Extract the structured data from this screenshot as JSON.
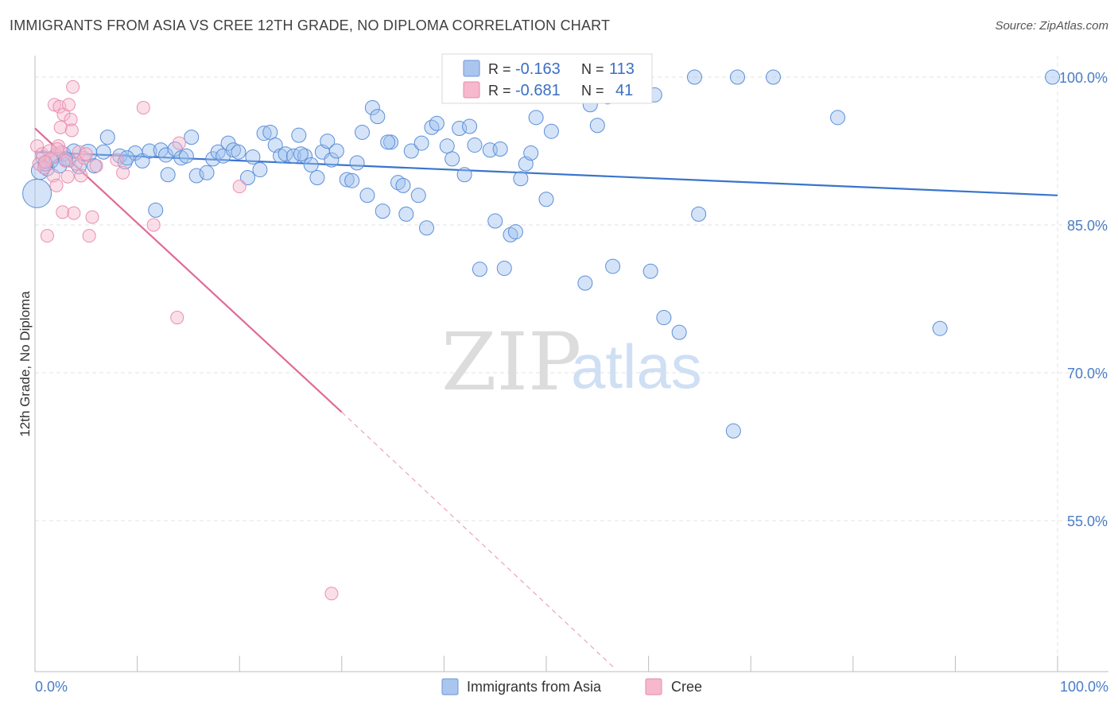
{
  "title": "IMMIGRANTS FROM ASIA VS CREE 12TH GRADE, NO DIPLOMA CORRELATION CHART",
  "source": "Source: ZipAtlas.com",
  "watermark": {
    "zip": "ZIP",
    "atlas": "atlas"
  },
  "colors": {
    "blue": "#3a74cc",
    "blue_fill": "#aac6ee",
    "pink": "#e06a98",
    "pink_fill": "#f6b8cc",
    "grid": "#e3e3e3",
    "tick_text": "#4a7cc7"
  },
  "legend": {
    "r_label": "R = ",
    "n_label": "N = ",
    "blue": {
      "r": "-0.163",
      "n": "113"
    },
    "pink": {
      "r": "-0.681",
      "n": "41"
    }
  },
  "chart_data": {
    "type": "scatter",
    "title": "IMMIGRANTS FROM ASIA VS CREE 12TH GRADE, NO DIPLOMA CORRELATION CHART",
    "xlabel": "",
    "ylabel": "12th Grade, No Diploma",
    "xlim": [
      0,
      100
    ],
    "ylim": [
      40,
      101.5
    ],
    "x_tick_labels": [
      "0.0%",
      "100.0%"
    ],
    "y_ticks": [
      {
        "value": 100,
        "label": "100.0%"
      },
      {
        "value": 85,
        "label": "85.0%"
      },
      {
        "value": 70,
        "label": "70.0%"
      },
      {
        "value": 55,
        "label": "55.0%"
      }
    ],
    "grid": true,
    "legend_position": "top-center",
    "series": [
      {
        "name": "Immigrants from Asia",
        "color": "#3a74cc",
        "r": -0.163,
        "n": 113,
        "trend": {
          "x": [
            0,
            100
          ],
          "y": [
            92.4,
            88.0
          ]
        },
        "points": [
          [
            0.2,
            88.2
          ],
          [
            0.5,
            90.5
          ],
          [
            0.8,
            91.8
          ],
          [
            1.2,
            90.7
          ],
          [
            1.6,
            91.5
          ],
          [
            2.0,
            92.0
          ],
          [
            2.4,
            91.0
          ],
          [
            2.8,
            92.2
          ],
          [
            3.3,
            91.6
          ],
          [
            3.8,
            92.5
          ],
          [
            4.3,
            90.9
          ],
          [
            5.2,
            92.3
          ],
          [
            6.7,
            92.4
          ],
          [
            7.1,
            93.9
          ],
          [
            8.3,
            92.0
          ],
          [
            8.8,
            91.4
          ],
          [
            9.8,
            92.3
          ],
          [
            10.5,
            91.5
          ],
          [
            11.2,
            92.5
          ],
          [
            11.8,
            86.5
          ],
          [
            12.3,
            92.6
          ],
          [
            12.8,
            92.1
          ],
          [
            13.0,
            90.1
          ],
          [
            13.7,
            92.7
          ],
          [
            14.3,
            91.8
          ],
          [
            14.8,
            92.0
          ],
          [
            15.3,
            93.9
          ],
          [
            15.8,
            90.0
          ],
          [
            16.8,
            90.3
          ],
          [
            17.4,
            91.7
          ],
          [
            17.9,
            92.4
          ],
          [
            18.4,
            92.0
          ],
          [
            18.9,
            93.3
          ],
          [
            19.4,
            92.6
          ],
          [
            19.9,
            92.4
          ],
          [
            20.8,
            89.8
          ],
          [
            21.3,
            91.9
          ],
          [
            22.0,
            90.6
          ],
          [
            22.4,
            94.3
          ],
          [
            23.0,
            94.4
          ],
          [
            23.5,
            93.1
          ],
          [
            24.0,
            92.0
          ],
          [
            24.5,
            92.2
          ],
          [
            25.3,
            92.0
          ],
          [
            25.8,
            94.1
          ],
          [
            26.4,
            92.0
          ],
          [
            27.0,
            91.1
          ],
          [
            27.6,
            89.8
          ],
          [
            28.1,
            92.4
          ],
          [
            28.6,
            93.5
          ],
          [
            29.0,
            91.6
          ],
          [
            29.5,
            92.5
          ],
          [
            30.5,
            89.6
          ],
          [
            31.0,
            89.5
          ],
          [
            31.5,
            91.3
          ],
          [
            32.0,
            94.4
          ],
          [
            32.5,
            88.0
          ],
          [
            33.0,
            96.9
          ],
          [
            33.5,
            96.0
          ],
          [
            34.0,
            86.4
          ],
          [
            34.8,
            93.4
          ],
          [
            35.5,
            89.3
          ],
          [
            36.0,
            89.0
          ],
          [
            36.3,
            86.1
          ],
          [
            36.8,
            92.5
          ],
          [
            37.5,
            88.0
          ],
          [
            37.8,
            93.3
          ],
          [
            38.3,
            84.7
          ],
          [
            38.8,
            94.9
          ],
          [
            39.3,
            95.3
          ],
          [
            40.3,
            93.0
          ],
          [
            40.8,
            91.7
          ],
          [
            41.5,
            94.8
          ],
          [
            42.0,
            90.1
          ],
          [
            42.5,
            95.0
          ],
          [
            43.0,
            93.1
          ],
          [
            43.5,
            80.5
          ],
          [
            44.5,
            92.6
          ],
          [
            45.0,
            85.4
          ],
          [
            45.5,
            92.7
          ],
          [
            45.9,
            80.6
          ],
          [
            46.5,
            84.0
          ],
          [
            47.0,
            84.3
          ],
          [
            47.5,
            89.7
          ],
          [
            48.0,
            91.2
          ],
          [
            48.5,
            92.3
          ],
          [
            49.0,
            95.9
          ],
          [
            50.0,
            87.6
          ],
          [
            50.5,
            94.5
          ],
          [
            53.8,
            79.1
          ],
          [
            54.3,
            97.2
          ],
          [
            55.0,
            95.1
          ],
          [
            56.0,
            98.0
          ],
          [
            56.5,
            80.8
          ],
          [
            57.0,
            100.0
          ],
          [
            60.2,
            80.3
          ],
          [
            60.6,
            98.2
          ],
          [
            61.5,
            75.6
          ],
          [
            63.0,
            74.1
          ],
          [
            64.5,
            100.0
          ],
          [
            64.9,
            86.1
          ],
          [
            68.3,
            64.1
          ],
          [
            68.7,
            100.0
          ],
          [
            72.2,
            100.0
          ],
          [
            78.5,
            95.9
          ],
          [
            88.5,
            74.5
          ],
          [
            99.5,
            100.0
          ],
          [
            1.0,
            91.2
          ],
          [
            3.0,
            91.7
          ],
          [
            5.8,
            91.0
          ],
          [
            9.0,
            91.8
          ],
          [
            26.0,
            92.2
          ],
          [
            34.5,
            93.4
          ]
        ]
      },
      {
        "name": "Cree",
        "color": "#e06a98",
        "r": -0.681,
        "n": 41,
        "trend": {
          "x": [
            0,
            30.0
          ],
          "y": [
            94.8,
            66.0
          ]
        },
        "trend_dashed": {
          "x": [
            30.0,
            56.7
          ],
          "y": [
            66.0,
            40.0
          ]
        },
        "points": [
          [
            0.2,
            93.0
          ],
          [
            0.4,
            91.2
          ],
          [
            0.7,
            92.2
          ],
          [
            0.9,
            90.8
          ],
          [
            1.2,
            83.9
          ],
          [
            1.4,
            92.5
          ],
          [
            1.6,
            91.8
          ],
          [
            1.8,
            90.0
          ],
          [
            1.9,
            97.2
          ],
          [
            2.1,
            89.0
          ],
          [
            2.3,
            93.0
          ],
          [
            2.4,
            97.0
          ],
          [
            2.5,
            94.9
          ],
          [
            2.6,
            92.4
          ],
          [
            2.7,
            86.3
          ],
          [
            2.8,
            96.2
          ],
          [
            3.0,
            91.5
          ],
          [
            3.2,
            89.9
          ],
          [
            3.3,
            97.2
          ],
          [
            3.5,
            95.7
          ],
          [
            3.6,
            94.6
          ],
          [
            3.7,
            99.0
          ],
          [
            3.8,
            86.2
          ],
          [
            4.0,
            91.2
          ],
          [
            4.3,
            92.4
          ],
          [
            4.5,
            90.0
          ],
          [
            4.8,
            91.8
          ],
          [
            5.0,
            92.2
          ],
          [
            5.3,
            83.9
          ],
          [
            5.6,
            85.8
          ],
          [
            6.0,
            91.0
          ],
          [
            8.0,
            91.6
          ],
          [
            8.6,
            90.3
          ],
          [
            10.6,
            96.9
          ],
          [
            11.6,
            85.0
          ],
          [
            14.1,
            93.3
          ],
          [
            13.9,
            75.6
          ],
          [
            20.0,
            88.9
          ],
          [
            29.0,
            47.6
          ],
          [
            1.0,
            91.4
          ],
          [
            2.2,
            92.7
          ]
        ]
      }
    ]
  },
  "bottom_legend": [
    {
      "label": "Immigrants from Asia"
    },
    {
      "label": "Cree"
    }
  ]
}
